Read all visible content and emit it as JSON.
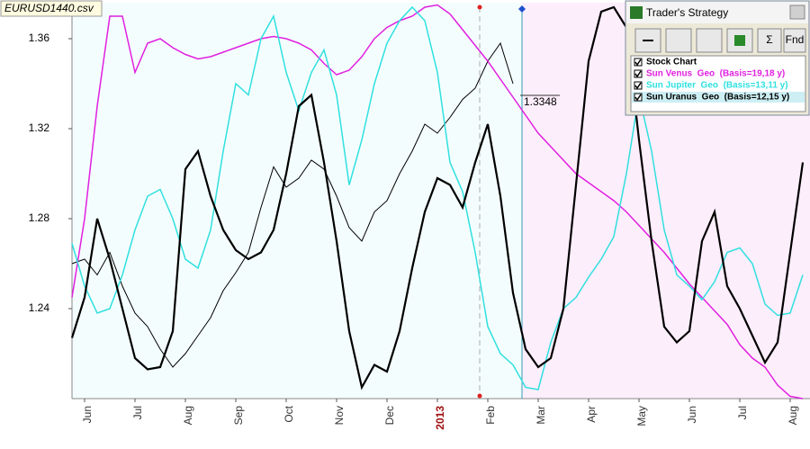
{
  "chart_data": {
    "type": "line",
    "title": "EURUSD1440.csv",
    "categories": [
      null,
      "Jun",
      null,
      null,
      null,
      "Jul",
      null,
      null,
      null,
      "Aug",
      null,
      null,
      null,
      "Sep",
      null,
      null,
      null,
      "Oct",
      null,
      null,
      null,
      "Nov",
      null,
      null,
      null,
      "Dec",
      null,
      null,
      null,
      "2013",
      null,
      null,
      null,
      "Feb",
      null,
      null,
      null,
      "Mar",
      null,
      null,
      null,
      "Apr",
      null,
      null,
      null,
      "May",
      null,
      null,
      null,
      "Jun",
      null,
      null,
      null,
      "Jul",
      null,
      null,
      null,
      "Aug",
      null
    ],
    "ylim": [
      1.2,
      1.376
    ],
    "yticks": [
      1.24,
      1.28,
      1.32,
      1.36
    ],
    "annotations": [
      {
        "text": "1.3348"
      }
    ],
    "series": [
      {
        "name": "Stock Chart",
        "color": "#000000",
        "values": [
          1.26,
          1.262,
          1.255,
          1.265,
          1.25,
          1.238,
          1.232,
          1.222,
          1.214,
          1.22,
          1.228,
          1.236,
          1.248,
          1.256,
          1.265,
          1.285,
          1.303,
          1.294,
          1.298,
          1.306,
          1.302,
          1.29,
          1.276,
          1.27,
          1.283,
          1.288,
          1.3,
          1.31,
          1.322,
          1.318,
          1.325,
          1.333,
          1.338,
          1.35,
          1.358,
          1.34,
          null,
          null,
          null,
          null,
          null,
          null,
          null,
          null,
          null,
          null,
          null,
          null,
          null,
          null,
          null,
          null,
          null,
          null,
          null,
          null,
          null,
          null,
          null
        ]
      },
      {
        "name": "Sun Venus  Geo  (Basis=19,18 y)",
        "color": "#e020e0",
        "values": [
          1.245,
          1.28,
          1.33,
          1.37,
          1.37,
          1.345,
          1.358,
          1.36,
          1.356,
          1.353,
          1.351,
          1.352,
          1.354,
          1.356,
          1.358,
          1.36,
          1.361,
          1.36,
          1.358,
          1.355,
          1.349,
          1.344,
          1.346,
          1.352,
          1.36,
          1.365,
          1.368,
          1.37,
          1.374,
          1.375,
          1.371,
          1.364,
          1.357,
          1.35,
          1.342,
          1.334,
          1.326,
          1.318,
          1.312,
          1.306,
          1.3,
          1.296,
          1.292,
          1.288,
          1.283,
          1.277,
          1.271,
          1.265,
          1.258,
          1.251,
          1.245,
          1.239,
          1.233,
          1.224,
          1.218,
          1.214,
          1.206,
          1.201,
          1.2
        ]
      },
      {
        "name": "Sun Jupiter  Geo  (Basis=13,11 y)",
        "color": "#30e0e0",
        "values": [
          1.269,
          1.25,
          1.238,
          1.24,
          1.255,
          1.275,
          1.29,
          1.293,
          1.28,
          1.262,
          1.258,
          1.275,
          1.31,
          1.34,
          1.335,
          1.36,
          1.37,
          1.345,
          1.328,
          1.345,
          1.355,
          1.335,
          1.295,
          1.315,
          1.34,
          1.358,
          1.368,
          1.374,
          1.368,
          1.345,
          1.305,
          1.292,
          1.265,
          1.232,
          1.22,
          1.215,
          1.205,
          1.204,
          1.225,
          1.24,
          1.245,
          1.254,
          1.262,
          1.272,
          1.3,
          1.335,
          1.31,
          1.275,
          1.255,
          1.25,
          1.244,
          1.252,
          1.265,
          1.267,
          1.26,
          1.242,
          1.237,
          1.238,
          1.255
        ]
      },
      {
        "name": "Sun Uranus  Geo  (Basis=12,15 y)",
        "color": "#000000",
        "values": [
          1.227,
          1.245,
          1.28,
          1.262,
          1.24,
          1.218,
          1.213,
          1.214,
          1.23,
          1.302,
          1.31,
          1.29,
          1.275,
          1.266,
          1.262,
          1.265,
          1.275,
          1.3,
          1.33,
          1.335,
          1.305,
          1.27,
          1.23,
          1.205,
          1.215,
          1.212,
          1.23,
          1.258,
          1.283,
          1.298,
          1.295,
          1.285,
          1.305,
          1.322,
          1.29,
          1.247,
          1.222,
          1.214,
          1.218,
          1.24,
          1.295,
          1.35,
          1.372,
          1.374,
          1.365,
          1.315,
          1.27,
          1.232,
          1.225,
          1.23,
          1.27,
          1.283,
          1.25,
          1.24,
          1.228,
          1.216,
          1.225,
          1.265,
          1.305
        ]
      }
    ]
  },
  "panel": {
    "title": "Trader's Strategy",
    "buttons": [
      "Σ",
      "Fnd"
    ]
  }
}
